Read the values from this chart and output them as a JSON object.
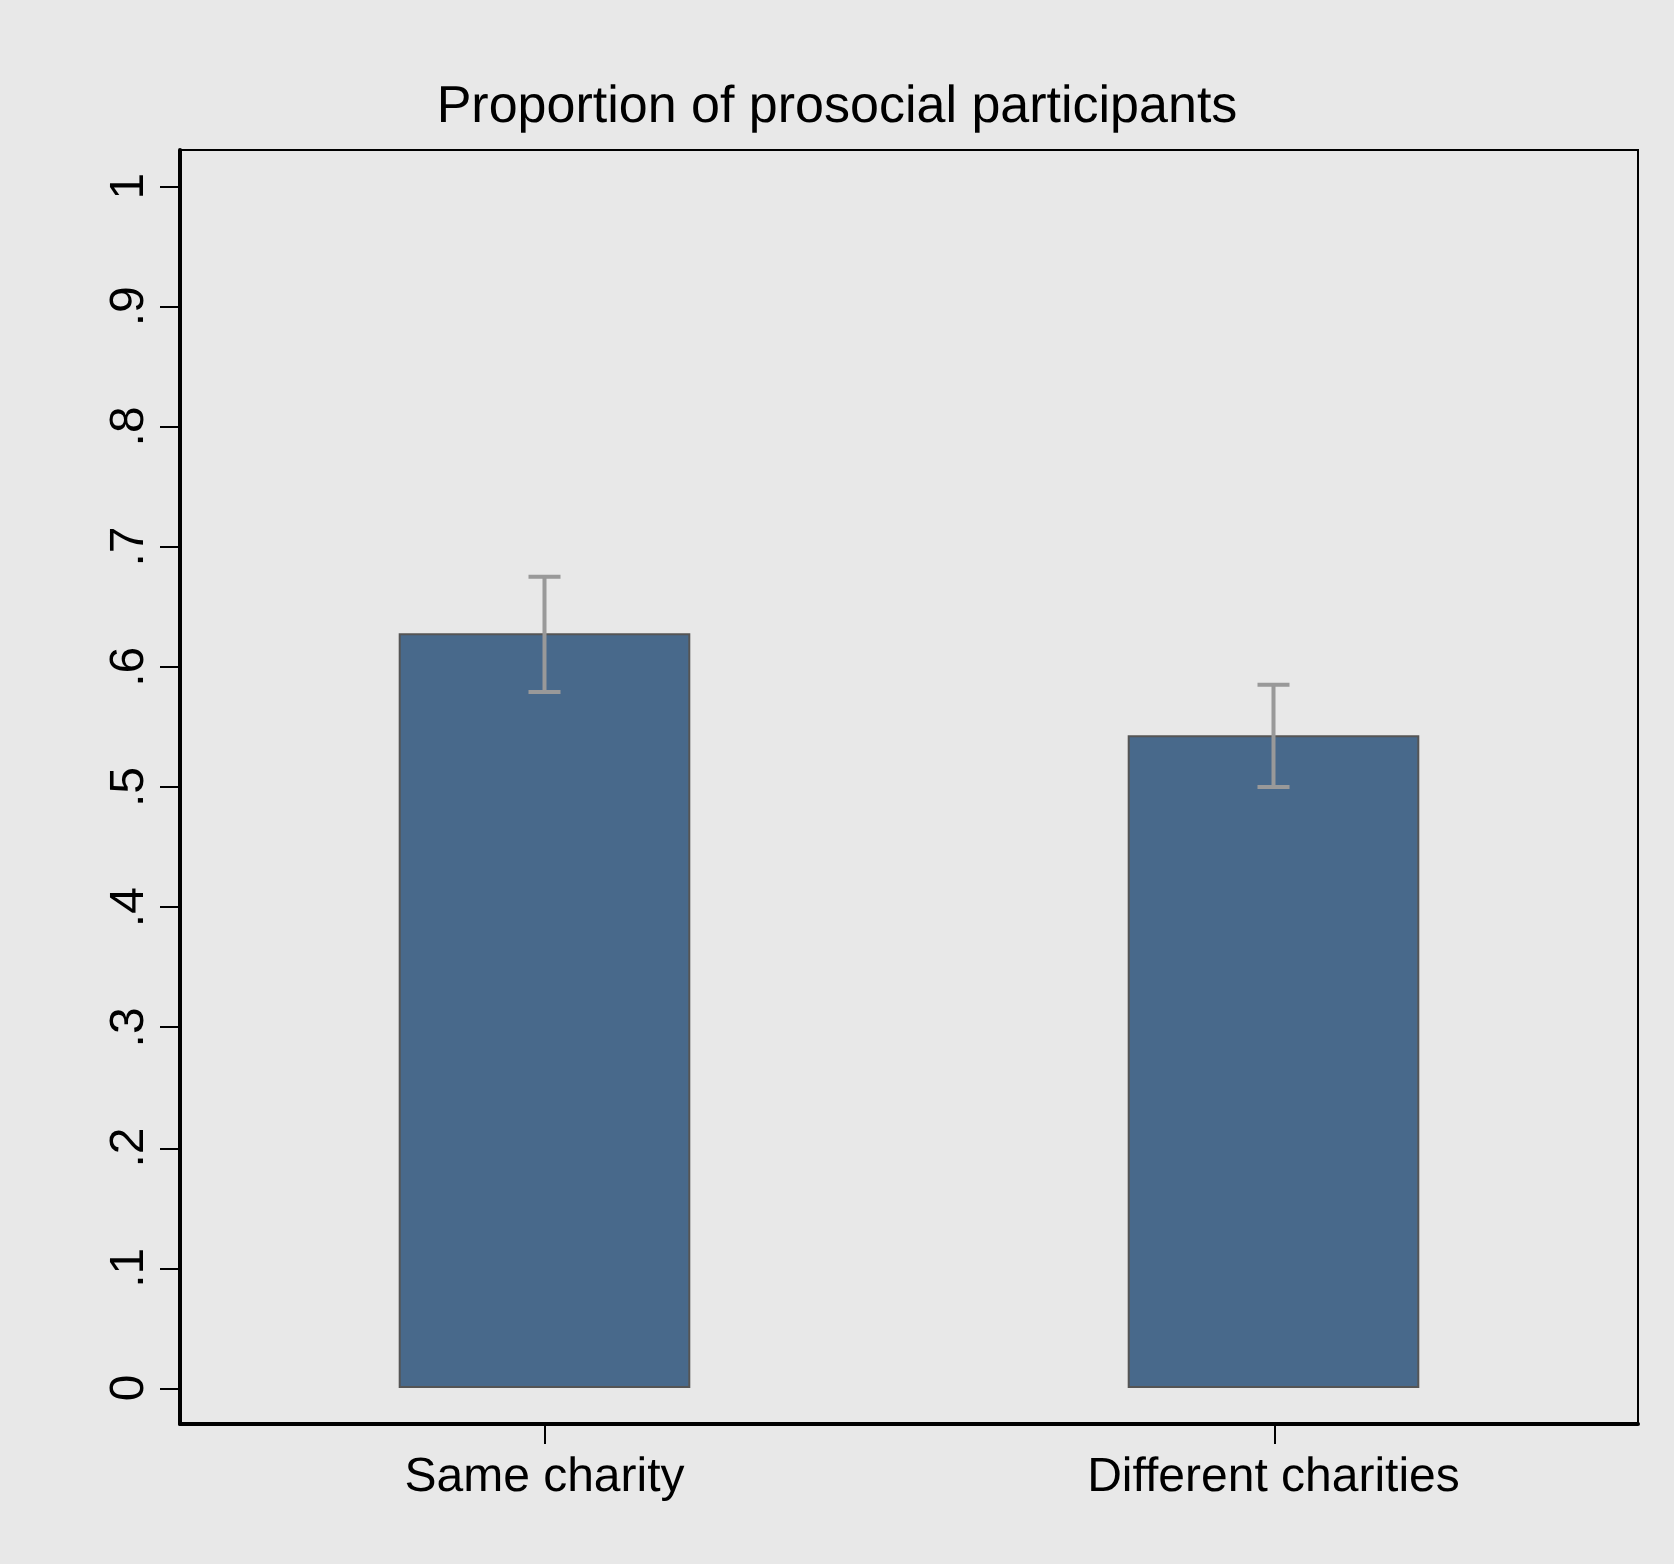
{
  "chart_data": {
    "type": "bar",
    "title": "Proportion of prosocial participants",
    "categories": [
      "Same charity",
      "Different charities"
    ],
    "series": [
      {
        "color": "#48698b",
        "values": [
          0.628,
          0.543
        ],
        "errors": [
          [
            0.579,
            0.675
          ],
          [
            0.5,
            0.585
          ]
        ]
      }
    ],
    "ylim": [
      -0.03,
      1.03
    ],
    "yticks": [
      0,
      {
        "value": 0.1,
        "label": ".1"
      },
      {
        "value": 0.2,
        "label": ".2"
      },
      {
        "value": 0.3,
        "label": ".3"
      },
      {
        "value": 0.4,
        "label": ".4"
      },
      {
        "value": 0.5,
        "label": ".5"
      },
      {
        "value": 0.6,
        "label": ".6"
      },
      {
        "value": 0.7,
        "label": ".7"
      },
      {
        "value": 0.8,
        "label": ".8"
      },
      {
        "value": 0.9,
        "label": ".9"
      },
      1
    ],
    "grid": false
  }
}
